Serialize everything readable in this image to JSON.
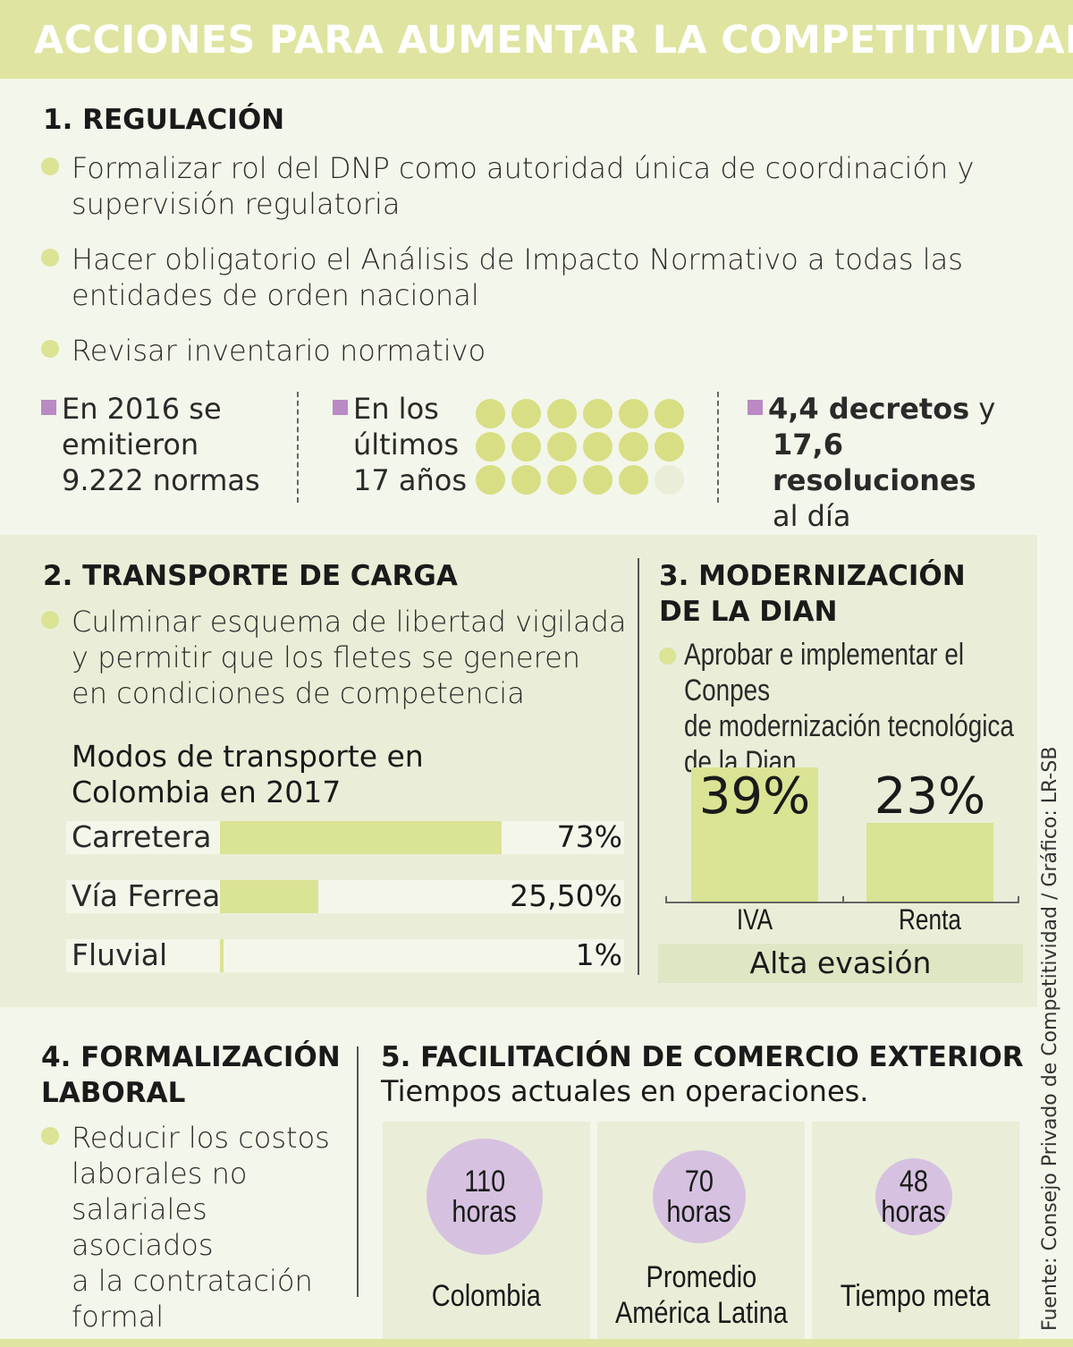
{
  "header": {
    "title": "ACCIONES PARA AUMENTAR LA COMPETITIVIDAD"
  },
  "regulacion": {
    "title": "1. REGULACIÓN",
    "bullets": [
      "Formalizar rol del DNP como autoridad única de coordinación y\nsupervisión regulatoria",
      "Hacer obligatorio el Análisis de Impacto Normativo a todas las\nentidades de orden nacional",
      "Revisar inventario normativo"
    ],
    "stat1": {
      "line1": "En 2016 se",
      "line2": "emitieron",
      "line3": "9.222 normas"
    },
    "stat2": {
      "line1": "En los",
      "line2": "últimos",
      "line3": "17 años",
      "filled": 17,
      "total": 18
    },
    "stat3": {
      "line1_bold": "4,4 decretos",
      "line1_rest": " y",
      "line2": "17,6 resoluciones",
      "line3": "al día"
    }
  },
  "transporte": {
    "title": "2. TRANSPORTE DE CARGA",
    "bullet": "Culminar esquema de libertad vigilada\ny permitir que los fletes se generen\nen condiciones de competencia",
    "chart_title": "Modos de transporte en\nColombia en 2017"
  },
  "dian": {
    "title_line1": "3. MODERNIZACIÓN",
    "title_line2": "DE LA DIAN",
    "bullet": "Aprobar e implementar el Conpes\nde modernización tecnológica\nde la Dian",
    "footer_label": "Alta evasión"
  },
  "chart_data": [
    {
      "type": "bar",
      "title": "Modos de transporte en Colombia en 2017",
      "categories": [
        "Carretera",
        "Vía Ferrea",
        "Fluvial"
      ],
      "values": [
        73,
        25.5,
        1
      ],
      "value_labels": [
        "73%",
        "25,50%",
        "1%"
      ],
      "xlim": [
        0,
        100
      ]
    },
    {
      "type": "bar",
      "title": "Alta evasión",
      "categories": [
        "IVA",
        "Renta"
      ],
      "values": [
        39,
        23
      ],
      "value_labels": [
        "39%",
        "23%"
      ]
    }
  ],
  "formalizacion": {
    "title_line1": "4. FORMALIZACIÓN",
    "title_line2": "LABORAL",
    "bullet": "Reducir los costos\nlaborales no\nsalariales asociados\na la contratación\nformal"
  },
  "comercio": {
    "title": "5. FACILITACIÓN DE COMERCIO EXTERIOR",
    "subtitle": "Tiempos actuales en operaciones.",
    "cards": [
      {
        "value": "110",
        "unit": "horas",
        "label": "Colombia",
        "hours": 110
      },
      {
        "value": "70",
        "unit": "horas",
        "label": "Promedio\nAmérica Latina",
        "hours": 70
      },
      {
        "value": "48",
        "unit": "horas",
        "label": "Tiempo meta",
        "hours": 48
      }
    ]
  },
  "source": "Fuente: Consejo Privado de Competitividad / Gráfico: LR-SB",
  "colors": {
    "header": "#dfe4a0",
    "accent_green": "#dbe394",
    "accent_purple": "#b98ac4",
    "circle_purple": "#d6c2e0",
    "band": "#eaeed8"
  }
}
